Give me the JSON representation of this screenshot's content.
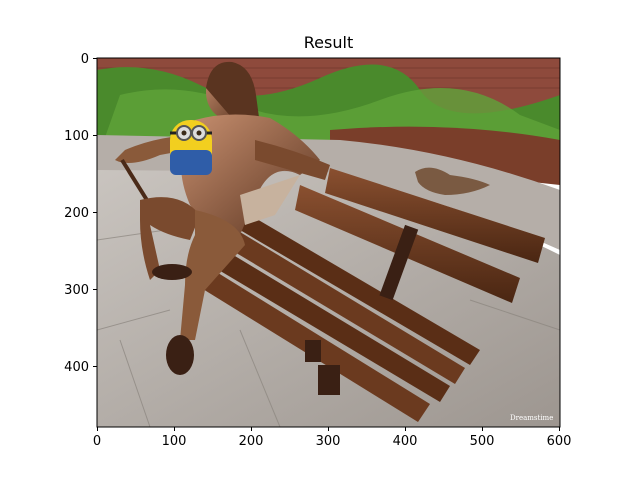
{
  "title": "Result",
  "image": {
    "description_icon": "bronze-statue-on-bench-photo",
    "watermark": "Dreamstime"
  },
  "axes": {
    "x_ticks": [
      "0",
      "100",
      "200",
      "300",
      "400",
      "500",
      "600"
    ],
    "y_ticks": [
      "0",
      "100",
      "200",
      "300",
      "400"
    ],
    "xlim": [
      0,
      600
    ],
    "ylim": [
      480,
      0
    ]
  },
  "colors": {
    "frame": "#000000",
    "bench_wood": "#6b3a1f",
    "bronze": "#8a5a3a",
    "foliage": "#4c8a2a",
    "brick": "#9a4a3a",
    "pavement": "#b8b2ac"
  }
}
